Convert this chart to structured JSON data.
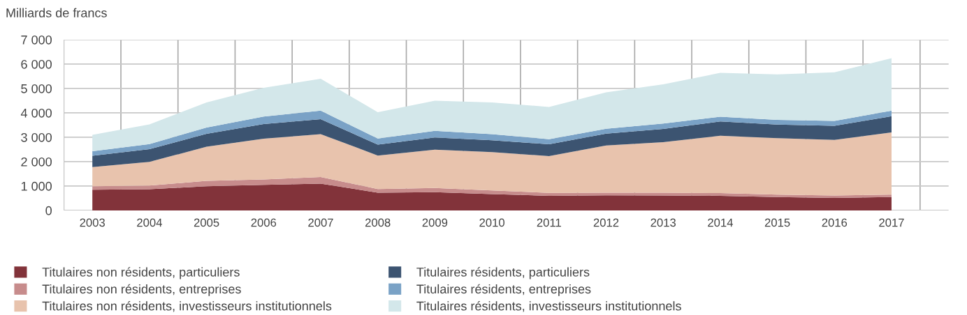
{
  "chart_data": {
    "type": "area",
    "stacked": true,
    "ylabel": "Milliards de francs",
    "categories": [
      "2003",
      "2004",
      "2005",
      "2006",
      "2007",
      "2008",
      "2009",
      "2010",
      "2011",
      "2012",
      "2013",
      "2014",
      "2015",
      "2016",
      "2017"
    ],
    "series": [
      {
        "name": "Titulaires non résidents, particuliers",
        "color": "#82333a",
        "values": [
          850,
          870,
          990,
          1050,
          1100,
          730,
          750,
          670,
          600,
          620,
          610,
          600,
          550,
          510,
          550
        ]
      },
      {
        "name": "Titulaires non résidents, entreprises",
        "color": "#c78c8c",
        "values": [
          140,
          150,
          220,
          220,
          270,
          150,
          170,
          150,
          120,
          110,
          120,
          110,
          100,
          100,
          100
        ]
      },
      {
        "name": "Titulaires non résidents, investisseurs institutionnels",
        "color": "#e8c3ad",
        "values": [
          790,
          970,
          1400,
          1670,
          1760,
          1370,
          1570,
          1570,
          1510,
          1930,
          2070,
          2350,
          2310,
          2280,
          2550
        ]
      },
      {
        "name": "Titulaires résidents, particuliers",
        "color": "#3c5471",
        "values": [
          460,
          520,
          530,
          600,
          610,
          450,
          500,
          490,
          480,
          490,
          540,
          590,
          560,
          580,
          660
        ]
      },
      {
        "name": "Titulaires résidents, entreprises",
        "color": "#7aa2c6",
        "values": [
          190,
          210,
          260,
          310,
          350,
          250,
          270,
          250,
          210,
          200,
          220,
          190,
          190,
          200,
          230
        ]
      },
      {
        "name": "Titulaires résidents, investisseurs institutionnels",
        "color": "#d3e7ea",
        "values": [
          670,
          810,
          1030,
          1180,
          1310,
          1080,
          1240,
          1300,
          1320,
          1490,
          1610,
          1800,
          1870,
          1990,
          2150
        ]
      }
    ],
    "ylim": [
      0,
      7000
    ],
    "yticks": [
      {
        "value": 0,
        "label": "0"
      },
      {
        "value": 1000,
        "label": "1 000"
      },
      {
        "value": 2000,
        "label": "2 000"
      },
      {
        "value": 3000,
        "label": "3 000"
      },
      {
        "value": 4000,
        "label": "4 000"
      },
      {
        "value": 5000,
        "label": "5 000"
      },
      {
        "value": 6000,
        "label": "6 000"
      },
      {
        "value": 7000,
        "label": "7 000"
      }
    ],
    "grid": true,
    "legend": "bottom"
  }
}
